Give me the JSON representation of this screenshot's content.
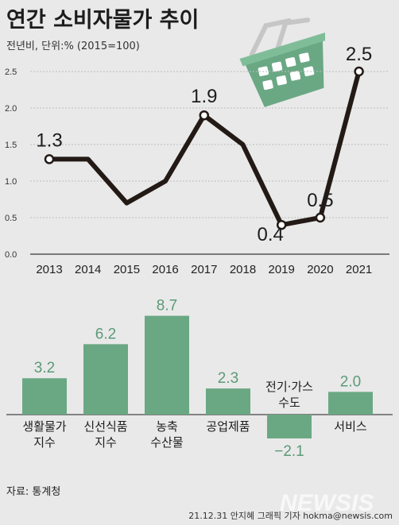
{
  "title": "연간 소비자물가 추이",
  "subtitle": "전년비, 단위:% (2015=100)",
  "colors": {
    "line": "#231a16",
    "bar": "#6aa884",
    "grid": "#bdbdbd",
    "background": "#e9e9e9"
  },
  "chart_data": [
    {
      "type": "line",
      "x": [
        "2013",
        "2014",
        "2015",
        "2016",
        "2017",
        "2018",
        "2019",
        "2020",
        "2021"
      ],
      "series": [
        {
          "values": [
            1.3,
            1.3,
            0.7,
            1.0,
            1.9,
            1.5,
            0.4,
            0.5,
            2.5
          ]
        }
      ],
      "ylim": [
        0,
        2.5
      ],
      "yticks": [
        "0.0",
        "0.5",
        "1.0",
        "1.5",
        "2.0",
        "2.5"
      ],
      "labels": [
        {
          "index": 0,
          "text": "1.3"
        },
        {
          "index": 4,
          "text": "1.9"
        },
        {
          "index": 6,
          "text": "0.4"
        },
        {
          "index": 7,
          "text": "0.5"
        },
        {
          "index": 8,
          "text": "2.5"
        }
      ],
      "grid": true
    },
    {
      "type": "bar",
      "categories": [
        [
          "생활물가",
          "지수"
        ],
        [
          "신선식품",
          "지수"
        ],
        [
          "농축",
          "수산물"
        ],
        [
          "공업제품"
        ],
        [
          "전기·가스",
          "수도"
        ],
        [
          "서비스"
        ]
      ],
      "values": [
        3.2,
        6.2,
        8.7,
        2.3,
        -2.1,
        2.0
      ],
      "value_labels": [
        "3.2",
        "6.2",
        "8.7",
        "2.3",
        "−2.1",
        "2.0"
      ]
    }
  ],
  "source": "자료: 통계청",
  "credit": "21.12.31 안지혜 그래픽 기자 hokma@newsis.com",
  "watermark": "NEWSIS",
  "icon": "shopping-basket-icon"
}
